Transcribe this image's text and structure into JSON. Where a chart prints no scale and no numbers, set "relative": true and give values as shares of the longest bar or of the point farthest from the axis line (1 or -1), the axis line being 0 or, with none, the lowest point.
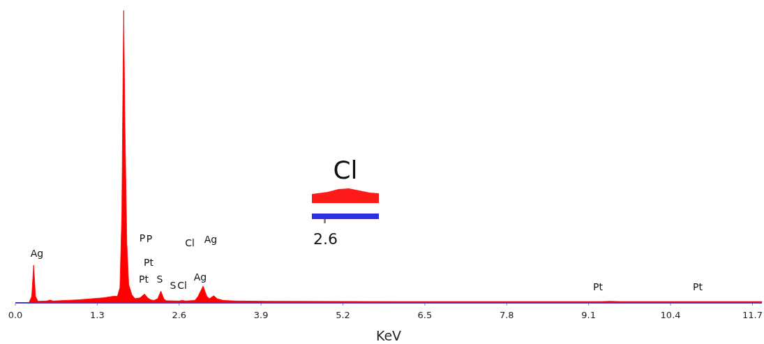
{
  "chart_data": {
    "type": "area",
    "relative": true,
    "xlabel": "KeV",
    "xlim": [
      0,
      11.85
    ],
    "xticks": [
      {
        "value": 0,
        "label": "0.0"
      },
      1.3,
      2.6,
      3.9,
      5.2,
      6.5,
      7.8,
      9.1,
      10.4,
      11.7
    ],
    "tick_labels": "x",
    "grid": false,
    "series": [
      {
        "color": "#ff0000",
        "x": [
          0.22,
          0.26,
          0.29,
          0.32,
          0.36,
          0.5,
          0.55,
          0.6,
          1.0,
          1.4,
          1.55,
          1.62,
          1.66,
          1.69,
          1.71,
          1.72,
          1.74,
          1.77,
          1.8,
          1.85,
          1.9,
          1.98,
          2.05,
          2.1,
          2.15,
          2.2,
          2.26,
          2.31,
          2.36,
          2.4,
          2.6,
          2.65,
          2.7,
          2.85,
          2.9,
          2.98,
          3.04,
          3.08,
          3.15,
          3.2,
          3.3,
          3.5,
          4.0,
          6.0,
          9.3,
          9.44,
          9.6,
          11.85
        ],
        "values": [
          0,
          0.02,
          0.127,
          0.02,
          0.003,
          0.004,
          0.007,
          0.004,
          0.008,
          0.015,
          0.02,
          0.02,
          0.05,
          0.3,
          0.8,
          1.0,
          0.6,
          0.2,
          0.06,
          0.025,
          0.012,
          0.015,
          0.028,
          0.015,
          0.008,
          0.006,
          0.012,
          0.038,
          0.01,
          0.005,
          0.004,
          0.006,
          0.004,
          0.006,
          0.02,
          0.055,
          0.02,
          0.012,
          0.022,
          0.012,
          0.006,
          0.004,
          0.003,
          0.002,
          0.002,
          0.003,
          0.002,
          0.002
        ]
      }
    ],
    "annotations": [
      "Ag",
      "P",
      "P",
      "Pt",
      "Pt",
      "S",
      "S",
      "Cl",
      "Ag",
      "Cl",
      "Ag",
      "Pt",
      "Pt",
      "Cl",
      "2.6"
    ]
  }
}
